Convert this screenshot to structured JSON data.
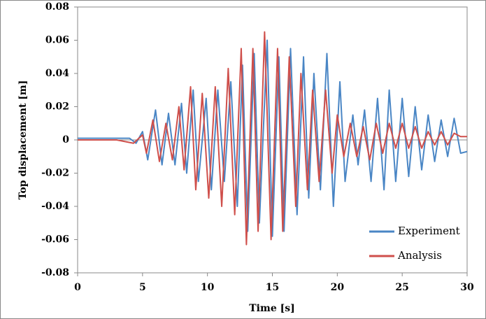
{
  "chart_data": {
    "type": "line",
    "xlabel": "Time [s]",
    "ylabel": "Top displacement [m]",
    "xlim": [
      0,
      30
    ],
    "xticks": [
      0,
      5,
      10,
      15,
      20,
      25,
      30
    ],
    "ylim": [
      -0.08,
      0.08
    ],
    "yticks": [
      -0.08,
      -0.06,
      -0.04,
      -0.02,
      0,
      0.02,
      0.04,
      0.06,
      0.08
    ],
    "legend": "lower right",
    "series": [
      {
        "name": "Experiment",
        "color": "#4a86c5",
        "x": [
          0,
          2,
          3,
          4,
          4.5,
          5.0,
          5.4,
          6.0,
          6.5,
          7.0,
          7.5,
          8.0,
          8.4,
          8.9,
          9.3,
          9.9,
          10.3,
          10.8,
          11.3,
          11.8,
          12.3,
          12.7,
          13.1,
          13.6,
          14.0,
          14.6,
          15.0,
          15.5,
          15.9,
          16.4,
          16.9,
          17.4,
          17.8,
          18.2,
          18.7,
          19.2,
          19.7,
          20.2,
          20.6,
          21.2,
          21.6,
          22.1,
          22.6,
          23.1,
          23.6,
          24.0,
          24.5,
          25.0,
          25.5,
          26.0,
          26.5,
          27.0,
          27.5,
          28.0,
          28.5,
          29.0,
          29.5,
          30.0
        ],
        "values": [
          0.001,
          0.001,
          0.001,
          0.001,
          -0.002,
          0.005,
          -0.012,
          0.018,
          -0.015,
          0.016,
          -0.015,
          0.022,
          -0.02,
          0.03,
          -0.025,
          0.025,
          -0.03,
          0.03,
          -0.025,
          0.035,
          -0.04,
          0.045,
          -0.055,
          0.052,
          -0.05,
          0.06,
          -0.058,
          0.05,
          -0.055,
          0.055,
          -0.045,
          0.05,
          -0.035,
          0.04,
          -0.03,
          0.052,
          -0.04,
          0.035,
          -0.025,
          0.015,
          -0.015,
          0.018,
          -0.025,
          0.025,
          -0.03,
          0.03,
          -0.025,
          0.025,
          -0.022,
          0.02,
          -0.018,
          0.015,
          -0.013,
          0.012,
          -0.01,
          0.013,
          -0.008,
          -0.007
        ]
      },
      {
        "name": "Analysis",
        "color": "#cf4f4b",
        "x": [
          0,
          3,
          4.3,
          5.0,
          5.3,
          5.8,
          6.3,
          6.8,
          7.3,
          7.8,
          8.2,
          8.7,
          9.1,
          9.6,
          10.1,
          10.6,
          11.1,
          11.6,
          12.1,
          12.6,
          13.0,
          13.5,
          13.9,
          14.4,
          14.9,
          15.4,
          15.8,
          16.3,
          16.8,
          17.2,
          17.7,
          18.1,
          18.6,
          19.1,
          19.6,
          20.0,
          20.5,
          21.0,
          21.5,
          22.0,
          22.5,
          23.0,
          23.5,
          24.0,
          24.5,
          25.0,
          25.5,
          26.0,
          26.5,
          27.0,
          27.5,
          28.0,
          28.5,
          29.0,
          29.5,
          30.0
        ],
        "values": [
          0,
          0,
          -0.002,
          0.003,
          -0.008,
          0.012,
          -0.013,
          0.01,
          -0.012,
          0.02,
          -0.018,
          0.032,
          -0.03,
          0.028,
          -0.035,
          0.032,
          -0.04,
          0.043,
          -0.045,
          0.055,
          -0.063,
          0.055,
          -0.055,
          0.065,
          -0.06,
          0.055,
          -0.055,
          0.05,
          -0.04,
          0.04,
          -0.03,
          0.03,
          -0.025,
          0.03,
          -0.02,
          0.015,
          -0.01,
          0.01,
          -0.01,
          0.008,
          -0.012,
          0.01,
          -0.008,
          0.01,
          -0.005,
          0.01,
          -0.005,
          0.008,
          -0.005,
          0.005,
          -0.003,
          0.005,
          -0.003,
          0.004,
          0.002,
          0.002
        ]
      }
    ]
  }
}
